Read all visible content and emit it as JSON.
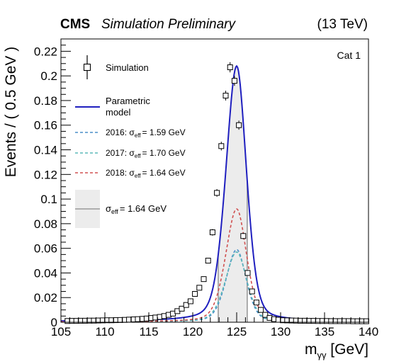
{
  "header": {
    "experiment": "CMS",
    "status": "Simulation Preliminary",
    "energy": "(13 TeV)",
    "category": "Cat 1"
  },
  "legend": {
    "simulation": "Simulation",
    "model_line1": "Parametric",
    "model_line2": "model",
    "y2016_year": "2016:",
    "y2016_value": "= 1.59 GeV",
    "y2017_year": "2017:",
    "y2017_value": "= 1.70 GeV",
    "y2018_year": "2018:",
    "y2018_value": "= 1.64 GeV",
    "sigma_symbol": "σ",
    "sigma_sub": "eff",
    "band_value": "= 1.64 GeV"
  },
  "colors": {
    "model": "#1f1fbf",
    "y2016": "#4a8ec8",
    "y2017": "#5ab8b8",
    "y2018": "#d05050",
    "band": "#ececec",
    "band_edge": "#999999"
  },
  "chart_data": {
    "type": "line",
    "title": "",
    "xlabel": "m_γγ [GeV]",
    "ylabel": "Events / ( 0.5 GeV )",
    "xlim": [
      105,
      140
    ],
    "ylim": [
      0,
      0.23
    ],
    "x_ticks": [
      105,
      110,
      115,
      120,
      125,
      130,
      135,
      140
    ],
    "y_ticks": [
      0,
      0.02,
      0.04,
      0.06,
      0.08,
      0.1,
      0.12,
      0.14,
      0.16,
      0.18,
      0.2,
      0.22
    ],
    "y_tick_labels": [
      "0",
      "0.02",
      "0.04",
      "0.06",
      "0.08",
      "0.1",
      "0.12",
      "0.14",
      "0.16",
      "0.18",
      "0.2",
      "0.22"
    ],
    "effective_band": [
      122.9,
      126.2
    ],
    "simulation_points": {
      "x": [
        105.75,
        106.25,
        106.75,
        107.25,
        107.75,
        108.25,
        108.75,
        109.25,
        109.75,
        110.25,
        110.75,
        111.25,
        111.75,
        112.25,
        112.75,
        113.25,
        113.75,
        114.25,
        114.75,
        115.25,
        115.75,
        116.25,
        116.75,
        117.25,
        117.75,
        118.25,
        118.75,
        119.25,
        119.75,
        120.25,
        120.75,
        121.25,
        121.75,
        122.25,
        122.75,
        123.25,
        123.75,
        124.25,
        124.75,
        125.25,
        125.75,
        126.25,
        126.75,
        127.25,
        127.75,
        128.25,
        128.75,
        129.25,
        129.75,
        130.25,
        130.75,
        131.25,
        131.75,
        132.25,
        132.75,
        133.25,
        133.75,
        134.25,
        134.75,
        135.25,
        135.75,
        136.25,
        136.75,
        137.25,
        137.75,
        138.25,
        138.75,
        139.25,
        139.75
      ],
      "y": [
        0.001,
        0.0011,
        0.0011,
        0.0012,
        0.0012,
        0.0013,
        0.0013,
        0.0014,
        0.0015,
        0.0016,
        0.0016,
        0.0017,
        0.0018,
        0.0019,
        0.0021,
        0.0023,
        0.0025,
        0.0027,
        0.003,
        0.0034,
        0.0038,
        0.0043,
        0.005,
        0.006,
        0.007,
        0.009,
        0.011,
        0.014,
        0.017,
        0.023,
        0.028,
        0.035,
        0.05,
        0.073,
        0.105,
        0.143,
        0.184,
        0.207,
        0.196,
        0.16,
        0.07,
        0.04,
        0.025,
        0.016,
        0.01,
        0.006,
        0.0035,
        0.0025,
        0.002,
        0.0016,
        0.0015,
        0.0014,
        0.0013,
        0.0012,
        0.0012,
        0.0011,
        0.0011,
        0.001,
        0.001,
        0.001,
        0.0009,
        0.0009,
        0.0009,
        0.0009,
        0.0009,
        0.0008,
        0.0008,
        0.0008,
        0.0008
      ]
    },
    "series": [
      {
        "name": "Parametric model",
        "peak_x": 125.0,
        "peak_y": 0.208,
        "style": "solid"
      },
      {
        "name": "2016",
        "peak_x": 125.0,
        "peak_y": 0.059,
        "style": "dashed"
      },
      {
        "name": "2017",
        "peak_x": 125.0,
        "peak_y": 0.057,
        "style": "dashed"
      },
      {
        "name": "2018",
        "peak_x": 125.0,
        "peak_y": 0.092,
        "style": "dashed"
      }
    ]
  }
}
